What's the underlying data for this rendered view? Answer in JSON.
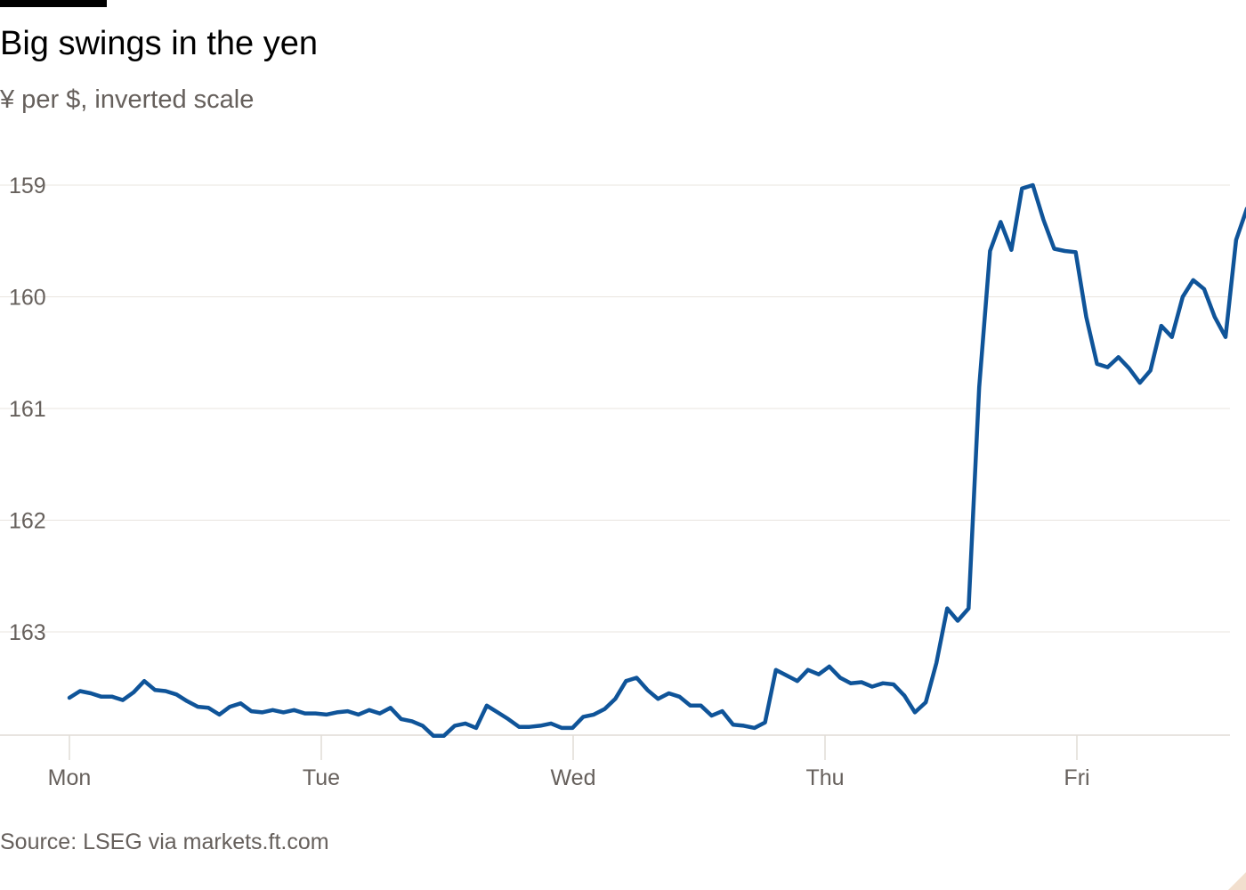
{
  "header": {
    "title": "Big swings in the yen",
    "subtitle": "¥ per $, inverted scale"
  },
  "footer": {
    "source": "Source: LSEG via markets.ft.com"
  },
  "colors": {
    "line": "#0f5499",
    "grid": "#e9e4df",
    "tick_text": "#66605c",
    "corner": "#f2dfce"
  },
  "chart_data": {
    "type": "line",
    "title": "Big swings in the yen",
    "subtitle": "¥ per $, inverted scale",
    "xlabel": "",
    "ylabel": "",
    "y_inverted": true,
    "ylim": [
      159,
      163.9
    ],
    "yticks": [
      159,
      160,
      161,
      162,
      163
    ],
    "grid": true,
    "categories": [
      "Mon",
      "Tue",
      "Wed",
      "Thu",
      "Fri"
    ],
    "x_tick_positions": [
      0,
      1,
      2,
      3,
      4
    ],
    "series": [
      {
        "values": [
          [
            0.0,
            163.59
          ],
          [
            0.042,
            163.53
          ],
          [
            0.085,
            163.55
          ],
          [
            0.127,
            163.58
          ],
          [
            0.17,
            163.58
          ],
          [
            0.212,
            163.61
          ],
          [
            0.255,
            163.54
          ],
          [
            0.297,
            163.44
          ],
          [
            0.34,
            163.52
          ],
          [
            0.382,
            163.53
          ],
          [
            0.425,
            163.56
          ],
          [
            0.467,
            163.62
          ],
          [
            0.51,
            163.67
          ],
          [
            0.552,
            163.68
          ],
          [
            0.595,
            163.74
          ],
          [
            0.637,
            163.67
          ],
          [
            0.68,
            163.64
          ],
          [
            0.722,
            163.71
          ],
          [
            0.765,
            163.72
          ],
          [
            0.807,
            163.7
          ],
          [
            0.85,
            163.72
          ],
          [
            0.892,
            163.7
          ],
          [
            0.935,
            163.73
          ],
          [
            0.977,
            163.73
          ],
          [
            1.02,
            163.74
          ],
          [
            1.062,
            163.72
          ],
          [
            1.105,
            163.71
          ],
          [
            1.147,
            163.74
          ],
          [
            1.19,
            163.7
          ],
          [
            1.232,
            163.73
          ],
          [
            1.275,
            163.68
          ],
          [
            1.317,
            163.78
          ],
          [
            1.36,
            163.8
          ],
          [
            1.402,
            163.84
          ],
          [
            1.445,
            163.93
          ],
          [
            1.487,
            163.93
          ],
          [
            1.53,
            163.84
          ],
          [
            1.572,
            163.82
          ],
          [
            1.615,
            163.86
          ],
          [
            1.657,
            163.66
          ],
          [
            1.7,
            163.72
          ],
          [
            1.742,
            163.78
          ],
          [
            1.785,
            163.85
          ],
          [
            1.827,
            163.85
          ],
          [
            1.87,
            163.84
          ],
          [
            1.912,
            163.82
          ],
          [
            1.955,
            163.86
          ],
          [
            1.997,
            163.86
          ],
          [
            2.04,
            163.76
          ],
          [
            2.082,
            163.74
          ],
          [
            2.125,
            163.69
          ],
          [
            2.167,
            163.6
          ],
          [
            2.21,
            163.44
          ],
          [
            2.252,
            163.41
          ],
          [
            2.295,
            163.52
          ],
          [
            2.337,
            163.6
          ],
          [
            2.38,
            163.55
          ],
          [
            2.422,
            163.58
          ],
          [
            2.465,
            163.66
          ],
          [
            2.507,
            163.66
          ],
          [
            2.55,
            163.75
          ],
          [
            2.592,
            163.71
          ],
          [
            2.635,
            163.83
          ],
          [
            2.677,
            163.84
          ],
          [
            2.72,
            163.86
          ],
          [
            2.762,
            163.81
          ],
          [
            2.805,
            163.34
          ],
          [
            2.847,
            163.39
          ],
          [
            2.89,
            163.44
          ],
          [
            2.932,
            163.34
          ],
          [
            2.975,
            163.38
          ],
          [
            3.017,
            163.31
          ],
          [
            3.06,
            163.41
          ],
          [
            3.102,
            163.46
          ],
          [
            3.145,
            163.45
          ],
          [
            3.187,
            163.49
          ],
          [
            3.23,
            163.46
          ],
          [
            3.272,
            163.47
          ],
          [
            3.315,
            163.57
          ],
          [
            3.357,
            163.72
          ],
          [
            3.4,
            163.63
          ],
          [
            3.442,
            163.28
          ],
          [
            3.485,
            162.79
          ],
          [
            3.527,
            162.9
          ],
          [
            3.57,
            162.79
          ],
          [
            3.612,
            160.81
          ],
          [
            3.655,
            159.59
          ],
          [
            3.697,
            159.33
          ],
          [
            3.74,
            159.58
          ],
          [
            3.782,
            159.03
          ],
          [
            3.825,
            159.0
          ],
          [
            3.867,
            159.31
          ],
          [
            3.91,
            159.57
          ],
          [
            3.952,
            159.59
          ],
          [
            3.995,
            159.6
          ],
          [
            4.037,
            160.18
          ],
          [
            4.08,
            160.6
          ],
          [
            4.122,
            160.63
          ],
          [
            4.165,
            160.54
          ],
          [
            4.207,
            160.64
          ],
          [
            4.25,
            160.77
          ],
          [
            4.292,
            160.66
          ],
          [
            4.335,
            160.26
          ],
          [
            4.377,
            160.36
          ],
          [
            4.42,
            160.0
          ],
          [
            4.462,
            159.85
          ],
          [
            4.505,
            159.93
          ],
          [
            4.547,
            160.18
          ],
          [
            4.59,
            160.36
          ],
          [
            4.632,
            159.49
          ],
          [
            4.675,
            159.21
          ]
        ]
      }
    ]
  }
}
